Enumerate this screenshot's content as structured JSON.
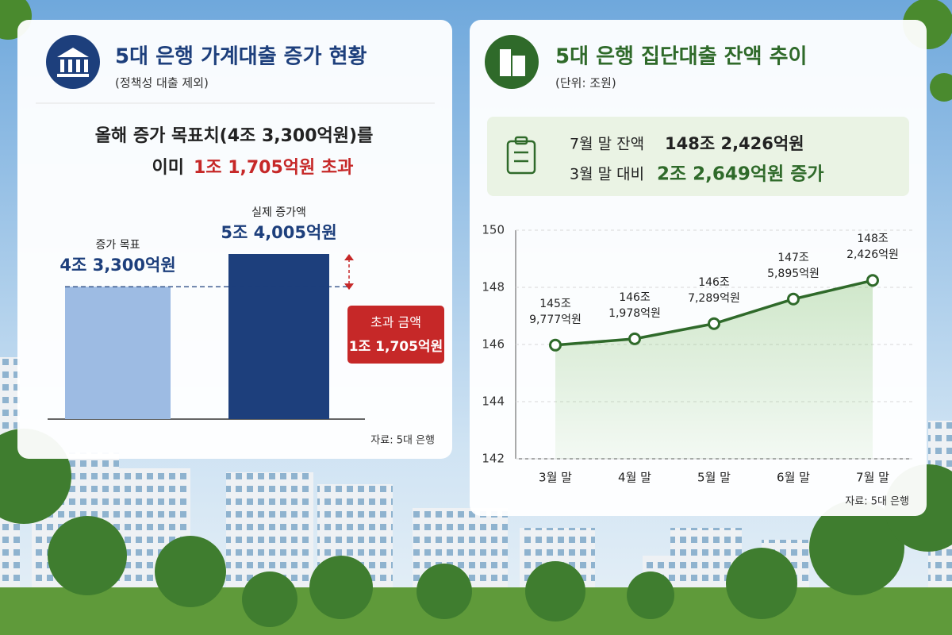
{
  "chart_data": [
    {
      "type": "bar",
      "title": "5대 은행 가계대출 증가 현황",
      "subtitle": "(정책성 대출 제외)",
      "headline": {
        "line1": "올해 증가 목표치(4조 3,300억원)를",
        "line2_prefix": "이미",
        "line2_highlight": "1조 1,705억원 초과"
      },
      "categories": [
        "증가 목표",
        "실제 증가액"
      ],
      "values": [
        43300,
        54005
      ],
      "value_labels": [
        "4조 3,300억원",
        "5조 4,005억원"
      ],
      "colors": [
        "#9dbbe3",
        "#1d3f7c"
      ],
      "annotation": {
        "label": "초과 금액",
        "value": 11705,
        "value_label": "1조 1,705억원",
        "color": "#c62828"
      },
      "source": "자료: 5대 은행"
    },
    {
      "type": "line",
      "title": "5대 은행 집단대출 잔액 추이",
      "subtitle": "(단위: 조원)",
      "summary": {
        "line1_prefix": "7월 말 잔액",
        "line1_value": "148조 2,426억원",
        "line2_prefix": "3월 말 대비",
        "line2_value": "2조 2,649억원 증가"
      },
      "categories": [
        "3월 말",
        "4월 말",
        "5월 말",
        "6월 말",
        "7월 말"
      ],
      "values": [
        145.9777,
        146.1978,
        146.7289,
        147.5895,
        148.2426
      ],
      "value_labels": [
        "145조 9,777억원",
        "146조 1,978억원",
        "146조 7,289억원",
        "147조 5,895억원",
        "148조 2,426억원"
      ],
      "color": "#2f6a2a",
      "ylim": [
        142,
        150
      ],
      "yticks": [
        142,
        144,
        146,
        148,
        150
      ],
      "grid": true,
      "source": "자료: 5대 은행"
    }
  ]
}
